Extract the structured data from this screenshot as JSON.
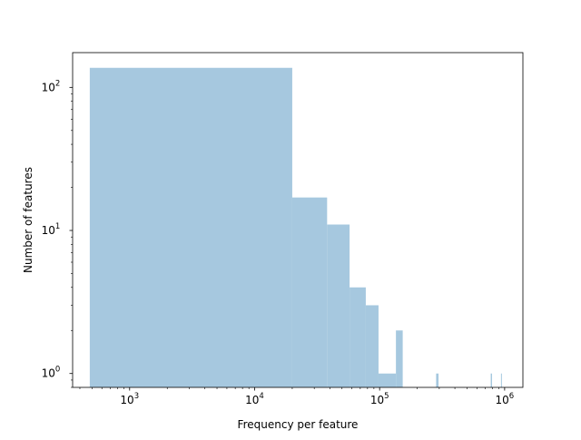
{
  "chart_data": {
    "type": "bar",
    "subtype": "histogram",
    "xlabel": "Frequency per feature",
    "ylabel": "Number of features",
    "x_scale": "log",
    "y_scale": "log",
    "xlim": [
      350,
      1400000
    ],
    "ylim": [
      0.8,
      175
    ],
    "x_ticks": [
      {
        "value": 1000,
        "base": "10",
        "exp": "3"
      },
      {
        "value": 10000,
        "base": "10",
        "exp": "4"
      },
      {
        "value": 100000,
        "base": "10",
        "exp": "5"
      },
      {
        "value": 1000000,
        "base": "10",
        "exp": "6"
      }
    ],
    "y_ticks": [
      {
        "value": 1,
        "base": "10",
        "exp": "0"
      },
      {
        "value": 10,
        "base": "10",
        "exp": "1"
      },
      {
        "value": 100,
        "base": "10",
        "exp": "2"
      }
    ],
    "bar_color": "#a6c8df",
    "grid": false,
    "legend": "none",
    "bins": [
      {
        "x0": 480,
        "x1": 20000,
        "count": 137
      },
      {
        "x0": 20000,
        "x1": 38000,
        "count": 17
      },
      {
        "x0": 38000,
        "x1": 57500,
        "count": 11
      },
      {
        "x0": 57500,
        "x1": 77500,
        "count": 4
      },
      {
        "x0": 77500,
        "x1": 98000,
        "count": 3
      },
      {
        "x0": 98000,
        "x1": 135000,
        "count": 1
      },
      {
        "x0": 135000,
        "x1": 153000,
        "count": 2
      },
      {
        "x0": 283000,
        "x1": 296000,
        "count": 1
      },
      {
        "x0": 774000,
        "x1": 793000,
        "count": 1
      },
      {
        "x0": 935000,
        "x1": 950000,
        "count": 1
      }
    ]
  }
}
